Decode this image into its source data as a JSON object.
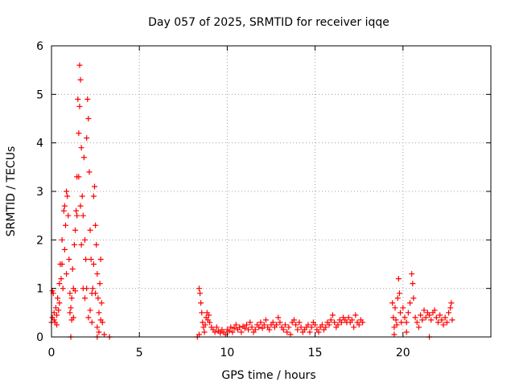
{
  "chart_data": {
    "type": "scatter",
    "title": "Day 057 of 2025, SRMTID for receiver iqqe",
    "xlabel": "GPS time / hours",
    "ylabel": "SRMTID / TECUs",
    "xlim": [
      0,
      25
    ],
    "ylim": [
      0,
      6
    ],
    "xticks": [
      "0",
      "5",
      "10",
      "15",
      "20"
    ],
    "xtick_values": [
      0,
      5,
      10,
      15,
      20
    ],
    "yticks": [
      "0",
      "1",
      "2",
      "3",
      "4",
      "5",
      "6"
    ],
    "ytick_values": [
      0,
      1,
      2,
      3,
      4,
      5,
      6
    ],
    "grid": true,
    "marker": "+",
    "color": "#ff0000",
    "series": [
      {
        "name": "SRMTID",
        "points": [
          [
            0.0,
            0.3
          ],
          [
            0.05,
            0.4
          ],
          [
            0.1,
            0.9
          ],
          [
            0.15,
            0.5
          ],
          [
            0.2,
            0.3
          ],
          [
            0.25,
            0.6
          ],
          [
            0.3,
            0.45
          ],
          [
            0.35,
            0.8
          ],
          [
            0.4,
            0.55
          ],
          [
            0.45,
            0.7
          ],
          [
            0.5,
            1.5
          ],
          [
            0.55,
            1.2
          ],
          [
            0.6,
            2.0
          ],
          [
            0.65,
            1.0
          ],
          [
            0.7,
            2.6
          ],
          [
            0.75,
            1.8
          ],
          [
            0.8,
            2.3
          ],
          [
            0.85,
            1.3
          ],
          [
            0.9,
            2.9
          ],
          [
            0.95,
            2.5
          ],
          [
            1.0,
            1.6
          ],
          [
            1.05,
            0.9
          ],
          [
            1.1,
            0.6
          ],
          [
            1.15,
            0.8
          ],
          [
            1.2,
            1.4
          ],
          [
            1.25,
            0.4
          ],
          [
            1.3,
            1.9
          ],
          [
            1.35,
            2.2
          ],
          [
            1.4,
            2.6
          ],
          [
            1.45,
            3.3
          ],
          [
            1.5,
            4.9
          ],
          [
            1.55,
            4.2
          ],
          [
            1.6,
            5.6
          ],
          [
            1.65,
            5.3
          ],
          [
            1.7,
            3.9
          ],
          [
            1.75,
            2.9
          ],
          [
            1.8,
            2.5
          ],
          [
            1.85,
            3.7
          ],
          [
            1.9,
            2.0
          ],
          [
            1.95,
            1.6
          ],
          [
            2.0,
            4.1
          ],
          [
            2.05,
            4.9
          ],
          [
            2.1,
            4.5
          ],
          [
            2.15,
            3.4
          ],
          [
            2.2,
            2.2
          ],
          [
            2.25,
            1.6
          ],
          [
            2.3,
            0.9
          ],
          [
            2.35,
            1.0
          ],
          [
            2.4,
            2.9
          ],
          [
            2.45,
            3.1
          ],
          [
            2.5,
            2.3
          ],
          [
            2.55,
            1.9
          ],
          [
            2.6,
            1.3
          ],
          [
            2.65,
            0.8
          ],
          [
            2.7,
            0.5
          ],
          [
            2.75,
            1.1
          ],
          [
            2.8,
            1.6
          ],
          [
            2.85,
            0.7
          ],
          [
            2.9,
            0.3
          ],
          [
            3.0,
            0.05
          ],
          [
            3.3,
            0.0
          ],
          [
            0.05,
            0.95
          ],
          [
            0.15,
            0.35
          ],
          [
            0.3,
            0.25
          ],
          [
            0.45,
            1.1
          ],
          [
            0.6,
            1.5
          ],
          [
            0.75,
            2.7
          ],
          [
            0.85,
            3.0
          ],
          [
            1.05,
            0.5
          ],
          [
            1.15,
            0.35
          ],
          [
            1.25,
            1.0
          ],
          [
            1.35,
            0.95
          ],
          [
            1.45,
            2.5
          ],
          [
            1.55,
            3.3
          ],
          [
            1.6,
            4.75
          ],
          [
            1.65,
            2.7
          ],
          [
            1.7,
            1.9
          ],
          [
            1.8,
            1.0
          ],
          [
            1.9,
            0.8
          ],
          [
            2.0,
            1.0
          ],
          [
            2.1,
            0.4
          ],
          [
            2.2,
            0.55
          ],
          [
            2.3,
            0.3
          ],
          [
            2.4,
            1.5
          ],
          [
            2.5,
            0.9
          ],
          [
            2.6,
            0.2
          ],
          [
            2.7,
            0.1
          ],
          [
            2.8,
            0.35
          ],
          [
            1.1,
            0.0
          ],
          [
            2.6,
            0.0
          ],
          [
            8.4,
            1.0
          ],
          [
            8.45,
            0.9
          ],
          [
            8.5,
            0.7
          ],
          [
            8.55,
            0.5
          ],
          [
            8.6,
            0.3
          ],
          [
            8.65,
            0.2
          ],
          [
            8.7,
            0.1
          ],
          [
            8.75,
            0.25
          ],
          [
            8.8,
            0.4
          ],
          [
            8.85,
            0.5
          ],
          [
            8.9,
            0.35
          ],
          [
            8.95,
            0.45
          ],
          [
            9.0,
            0.3
          ],
          [
            9.1,
            0.2
          ],
          [
            9.2,
            0.15
          ],
          [
            9.3,
            0.1
          ],
          [
            9.4,
            0.2
          ],
          [
            9.5,
            0.12
          ],
          [
            9.6,
            0.08
          ],
          [
            9.7,
            0.15
          ],
          [
            9.8,
            0.1
          ],
          [
            9.9,
            0.05
          ],
          [
            10.0,
            0.15
          ],
          [
            10.1,
            0.12
          ],
          [
            10.2,
            0.2
          ],
          [
            10.3,
            0.1
          ],
          [
            10.4,
            0.18
          ],
          [
            10.5,
            0.25
          ],
          [
            10.6,
            0.15
          ],
          [
            10.7,
            0.2
          ],
          [
            10.8,
            0.1
          ],
          [
            10.9,
            0.22
          ],
          [
            11.0,
            0.18
          ],
          [
            11.1,
            0.25
          ],
          [
            11.2,
            0.15
          ],
          [
            11.3,
            0.3
          ],
          [
            11.4,
            0.2
          ],
          [
            11.5,
            0.1
          ],
          [
            11.6,
            0.15
          ],
          [
            11.7,
            0.25
          ],
          [
            11.8,
            0.2
          ],
          [
            11.9,
            0.3
          ],
          [
            12.0,
            0.18
          ],
          [
            12.1,
            0.25
          ],
          [
            12.2,
            0.35
          ],
          [
            12.3,
            0.2
          ],
          [
            12.4,
            0.15
          ],
          [
            12.5,
            0.25
          ],
          [
            12.6,
            0.3
          ],
          [
            12.7,
            0.2
          ],
          [
            12.8,
            0.25
          ],
          [
            12.9,
            0.4
          ],
          [
            13.0,
            0.3
          ],
          [
            13.1,
            0.2
          ],
          [
            13.2,
            0.15
          ],
          [
            13.3,
            0.25
          ],
          [
            13.4,
            0.1
          ],
          [
            13.5,
            0.2
          ],
          [
            13.6,
            0.05
          ],
          [
            13.7,
            0.3
          ],
          [
            13.8,
            0.35
          ],
          [
            13.9,
            0.25
          ],
          [
            14.0,
            0.15
          ],
          [
            14.1,
            0.3
          ],
          [
            14.2,
            0.2
          ],
          [
            14.3,
            0.1
          ],
          [
            14.4,
            0.15
          ],
          [
            14.5,
            0.2
          ],
          [
            14.6,
            0.25
          ],
          [
            14.7,
            0.1
          ],
          [
            14.8,
            0.2
          ],
          [
            14.9,
            0.3
          ],
          [
            15.0,
            0.25
          ],
          [
            15.1,
            0.15
          ],
          [
            15.2,
            0.1
          ],
          [
            15.3,
            0.2
          ],
          [
            15.4,
            0.25
          ],
          [
            15.5,
            0.15
          ],
          [
            15.6,
            0.2
          ],
          [
            15.7,
            0.3
          ],
          [
            15.8,
            0.25
          ],
          [
            15.9,
            0.35
          ],
          [
            16.0,
            0.45
          ],
          [
            16.1,
            0.3
          ],
          [
            16.2,
            0.2
          ],
          [
            16.3,
            0.25
          ],
          [
            16.4,
            0.35
          ],
          [
            16.5,
            0.3
          ],
          [
            16.6,
            0.4
          ],
          [
            16.7,
            0.35
          ],
          [
            16.8,
            0.3
          ],
          [
            16.9,
            0.4
          ],
          [
            17.0,
            0.3
          ],
          [
            17.1,
            0.35
          ],
          [
            17.2,
            0.2
          ],
          [
            17.3,
            0.45
          ],
          [
            17.4,
            0.3
          ],
          [
            17.5,
            0.25
          ],
          [
            17.6,
            0.35
          ],
          [
            17.7,
            0.3
          ],
          [
            19.4,
            0.7
          ],
          [
            19.45,
            0.4
          ],
          [
            19.5,
            0.2
          ],
          [
            19.55,
            0.6
          ],
          [
            19.6,
            0.35
          ],
          [
            19.65,
            0.25
          ],
          [
            19.7,
            0.8
          ],
          [
            19.75,
            1.2
          ],
          [
            19.8,
            0.9
          ],
          [
            19.85,
            0.5
          ],
          [
            19.9,
            0.3
          ],
          [
            20.0,
            0.6
          ],
          [
            20.1,
            0.4
          ],
          [
            20.2,
            0.3
          ],
          [
            20.3,
            0.5
          ],
          [
            20.4,
            0.7
          ],
          [
            20.5,
            1.3
          ],
          [
            20.55,
            1.1
          ],
          [
            20.6,
            0.8
          ],
          [
            20.7,
            0.4
          ],
          [
            20.8,
            0.3
          ],
          [
            20.9,
            0.2
          ],
          [
            21.0,
            0.45
          ],
          [
            21.1,
            0.35
          ],
          [
            21.2,
            0.55
          ],
          [
            21.3,
            0.4
          ],
          [
            21.4,
            0.5
          ],
          [
            21.5,
            0.45
          ],
          [
            21.6,
            0.35
          ],
          [
            21.7,
            0.5
          ],
          [
            21.8,
            0.55
          ],
          [
            21.9,
            0.4
          ],
          [
            22.0,
            0.3
          ],
          [
            22.1,
            0.45
          ],
          [
            22.2,
            0.35
          ],
          [
            22.3,
            0.25
          ],
          [
            22.4,
            0.4
          ],
          [
            22.5,
            0.3
          ],
          [
            22.6,
            0.5
          ],
          [
            22.7,
            0.6
          ],
          [
            22.75,
            0.7
          ],
          [
            22.8,
            0.35
          ],
          [
            19.5,
            0.05
          ],
          [
            20.2,
            0.1
          ],
          [
            21.5,
            0.0
          ],
          [
            8.3,
            0.0
          ],
          [
            8.4,
            0.05
          ]
        ]
      }
    ]
  }
}
